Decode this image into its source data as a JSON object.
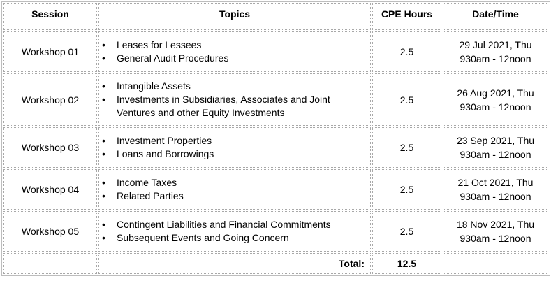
{
  "headers": {
    "session": "Session",
    "topics": "Topics",
    "cpe": "CPE Hours",
    "datetime": "Date/Time"
  },
  "rows": [
    {
      "session": "Workshop 01",
      "topics": [
        "Leases for Lessees",
        "General Audit Procedures"
      ],
      "cpe": "2.5",
      "date": "29 Jul 2021, Thu",
      "time": "930am - 12noon"
    },
    {
      "session": "Workshop 02",
      "topics": [
        "Intangible Assets",
        "Investments in Subsidiaries, Associates and Joint Ventures and other Equity Investments"
      ],
      "cpe": "2.5",
      "date": "26 Aug 2021, Thu",
      "time": "930am - 12noon"
    },
    {
      "session": "Workshop 03",
      "topics": [
        "Investment Properties",
        "Loans and Borrowings"
      ],
      "cpe": "2.5",
      "date": "23 Sep 2021, Thu",
      "time": "930am - 12noon"
    },
    {
      "session": "Workshop 04",
      "topics": [
        "Income Taxes",
        "Related Parties"
      ],
      "cpe": "2.5",
      "date": "21 Oct 2021, Thu",
      "time": "930am - 12noon"
    },
    {
      "session": "Workshop 05",
      "topics": [
        "Contingent Liabilities and Financial Commitments",
        "Subsequent Events and Going Concern"
      ],
      "cpe": "2.5",
      "date": "18 Nov 2021, Thu",
      "time": "930am - 12noon"
    }
  ],
  "total": {
    "label": "Total:",
    "value": "12.5"
  }
}
